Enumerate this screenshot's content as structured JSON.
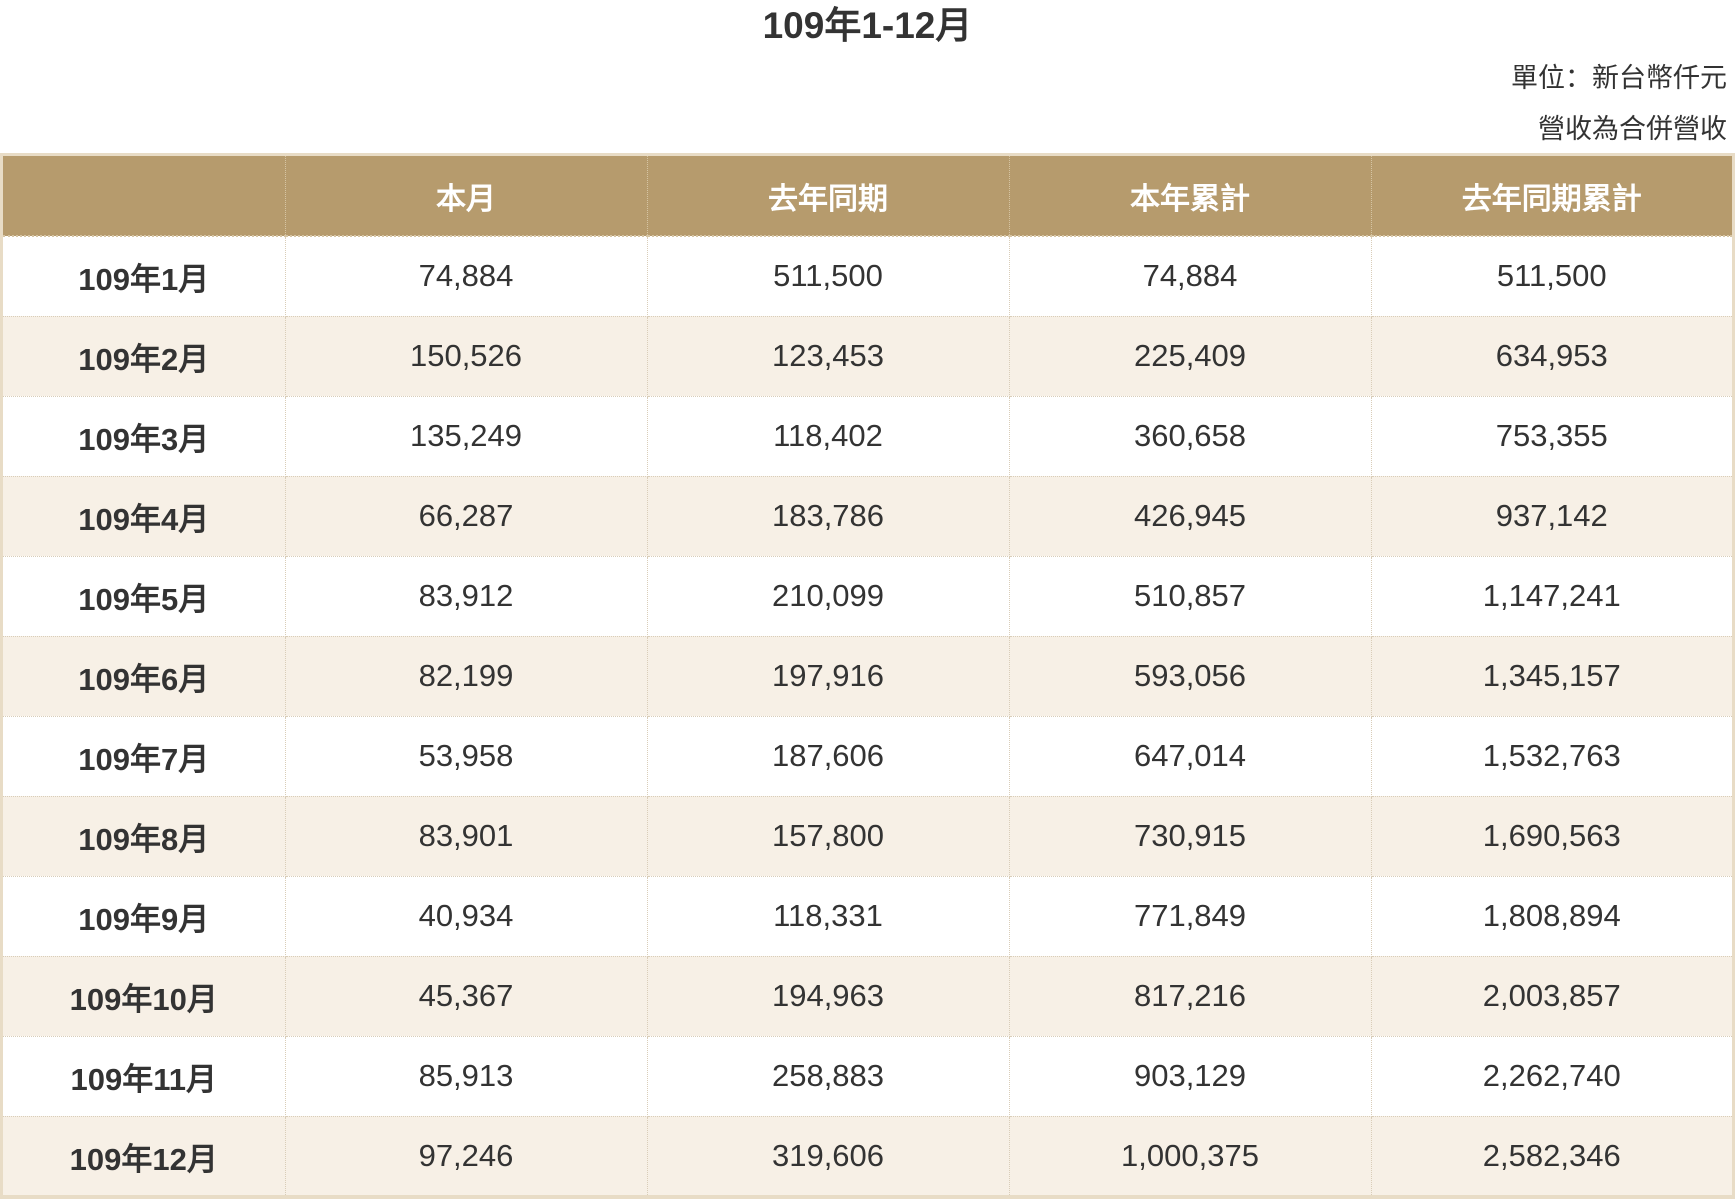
{
  "title": "109年1-12月",
  "unit_note": "單位：新台幣仟元",
  "consolidated_note": "營收為合併營收",
  "table": {
    "headers": [
      "",
      "本月",
      "去年同期",
      "本年累計",
      "去年同期累計"
    ],
    "rows": [
      [
        "109年1月",
        "74,884",
        "511,500",
        "74,884",
        "511,500"
      ],
      [
        "109年2月",
        "150,526",
        "123,453",
        "225,409",
        "634,953"
      ],
      [
        "109年3月",
        "135,249",
        "118,402",
        "360,658",
        "753,355"
      ],
      [
        "109年4月",
        "66,287",
        "183,786",
        "426,945",
        "937,142"
      ],
      [
        "109年5月",
        "83,912",
        "210,099",
        "510,857",
        "1,147,241"
      ],
      [
        "109年6月",
        "82,199",
        "197,916",
        "593,056",
        "1,345,157"
      ],
      [
        "109年7月",
        "53,958",
        "187,606",
        "647,014",
        "1,532,763"
      ],
      [
        "109年8月",
        "83,901",
        "157,800",
        "730,915",
        "1,690,563"
      ],
      [
        "109年9月",
        "40,934",
        "118,331",
        "771,849",
        "1,808,894"
      ],
      [
        "109年10月",
        "45,367",
        "194,963",
        "817,216",
        "2,003,857"
      ],
      [
        "109年11月",
        "85,913",
        "258,883",
        "903,129",
        "2,262,740"
      ],
      [
        "109年12月",
        "97,246",
        "319,606",
        "1,000,375",
        "2,582,346"
      ]
    ]
  },
  "colors": {
    "header_bg": "#b69b6d",
    "header_text": "#ffffff",
    "row_alt_bg": "#f7f0e6",
    "border": "#e8dcc6"
  }
}
